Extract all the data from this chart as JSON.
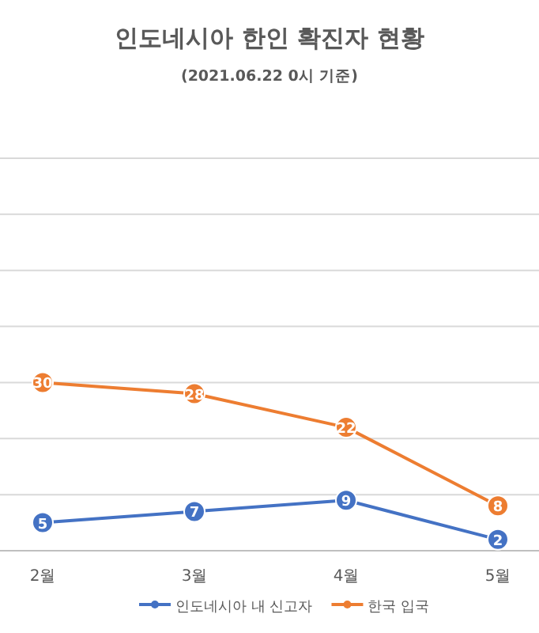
{
  "chart_data": {
    "type": "line",
    "title": "인도네시아 한인 확진자 현황",
    "subtitle": "(2021.06.22 0시 기준)",
    "categories": [
      "2월",
      "3월",
      "4월",
      "5월"
    ],
    "series": [
      {
        "name": "인도네시아 내 신고자",
        "color": "#4472c4",
        "values": [
          5,
          7,
          9,
          2
        ]
      },
      {
        "name": "한국 입국",
        "color": "#ed7d31",
        "values": [
          30,
          28,
          22,
          8
        ]
      }
    ],
    "ylim": [
      0,
      70
    ],
    "yticks": [
      {
        "value": 0,
        "label": null
      },
      {
        "value": 10,
        "label": null
      },
      {
        "value": 20,
        "label": null
      },
      {
        "value": 30,
        "label": null
      },
      {
        "value": 40,
        "label": null
      },
      {
        "value": 50,
        "label": null
      },
      {
        "value": 60,
        "label": null
      },
      {
        "value": 70,
        "label": null
      }
    ],
    "tick_labels": "x",
    "grid": "y",
    "marker": "circle",
    "line_style": "solid",
    "data_labels": true,
    "legend": "bottom"
  }
}
